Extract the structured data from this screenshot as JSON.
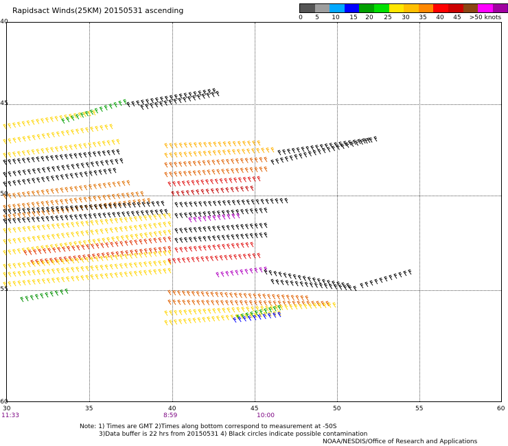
{
  "title": "Rapidsact Winds(25KM) 20150531 ascending",
  "legend": {
    "colors": [
      "#555555",
      "#9e9e9e",
      "#00a8ff",
      "#0000ff",
      "#00a000",
      "#00e000",
      "#ffe600",
      "#ffbf00",
      "#ff8800",
      "#ff0000",
      "#cc0000",
      "#8b4513",
      "#ff00ff",
      "#a000a0",
      "#5a00a0"
    ],
    "labels": [
      "0",
      "5",
      "10",
      "15",
      "20",
      "25",
      "30",
      "35",
      "40",
      "45",
      ">50 knots"
    ]
  },
  "axes": {
    "lat_labels": [
      "-40",
      "-45",
      "-50",
      "-55",
      "-60"
    ],
    "lon_labels": [
      "30",
      "35",
      "40",
      "45",
      "50",
      "55",
      "60"
    ]
  },
  "times": [
    "11:33",
    "8:59",
    "10:00"
  ],
  "notes": {
    "line1": "Note: 1) Times are GMT 2)Times along bottom correspond to measurement at -50S",
    "line2": "3)Data buffer is 22 hrs from 20150531 4) Black circles indicate possible contamination",
    "credit": "NOAA/NESDIS/Office of Research and Applications"
  },
  "swaths": {
    "west_band": [
      {
        "color": "#ffd400",
        "rows": [
          [
            0,
            188,
            130,
            168
          ],
          [
            0,
            210,
            155,
            188
          ],
          [
            0,
            230,
            165,
            210
          ]
        ]
      },
      {
        "color": "#000000",
        "rows": [
          [
            0,
            240,
            165,
            225
          ],
          [
            0,
            258,
            170,
            238
          ],
          [
            0,
            272,
            160,
            252
          ]
        ]
      },
      {
        "color": "#e07000",
        "rows": [
          [
            0,
            290,
            180,
            270
          ],
          [
            0,
            306,
            200,
            286
          ],
          [
            0,
            320,
            210,
            296
          ]
        ]
      },
      {
        "color": "#000000",
        "rows": [
          [
            0,
            312,
            230,
            300
          ],
          [
            0,
            326,
            235,
            312
          ]
        ]
      },
      {
        "color": "#ffd400",
        "rows": [
          [
            0,
            340,
            240,
            318
          ],
          [
            0,
            356,
            240,
            330
          ],
          [
            0,
            372,
            240,
            342
          ]
        ]
      },
      {
        "color": "#e03000",
        "rows": [
          [
            30,
            372,
            240,
            352
          ],
          [
            40,
            386,
            240,
            366
          ]
        ]
      },
      {
        "color": "#ffd400",
        "rows": [
          [
            0,
            392,
            240,
            372
          ],
          [
            0,
            404,
            240,
            386
          ],
          [
            0,
            418,
            240,
            398
          ]
        ]
      },
      {
        "color": "#009000",
        "rows": [
          [
            25,
            440,
            90,
            428
          ]
        ]
      }
    ],
    "central_band": [
      {
        "color": "#ffb000",
        "rows": [
          [
            235,
            216,
            370,
            212
          ],
          [
            235,
            230,
            390,
            222
          ]
        ]
      },
      {
        "color": "#e06000",
        "rows": [
          [
            235,
            244,
            380,
            236
          ],
          [
            235,
            258,
            380,
            250
          ]
        ]
      },
      {
        "color": "#e01010",
        "rows": [
          [
            240,
            272,
            370,
            264
          ]
        ]
      },
      {
        "color": "#c00000",
        "rows": [
          [
            245,
            286,
            360,
            278
          ]
        ]
      },
      {
        "color": "#000000",
        "rows": [
          [
            250,
            302,
            410,
            296
          ],
          [
            250,
            318,
            380,
            310
          ]
        ]
      },
      {
        "color": "#b000c0",
        "rows": [
          [
            270,
            324,
            340,
            318
          ]
        ]
      },
      {
        "color": "#000000",
        "rows": [
          [
            250,
            340,
            380,
            332
          ],
          [
            250,
            354,
            380,
            346
          ]
        ]
      },
      {
        "color": "#e01010",
        "rows": [
          [
            250,
            368,
            360,
            360
          ],
          [
            240,
            384,
            370,
            376
          ]
        ]
      },
      {
        "color": "#b000c0",
        "rows": [
          [
            310,
            404,
            380,
            396
          ]
        ]
      },
      {
        "color": "#000000",
        "rows": [
          [
            380,
            400,
            500,
            420
          ],
          [
            390,
            414,
            510,
            424
          ]
        ]
      },
      {
        "color": "#e06000",
        "rows": [
          [
            240,
            430,
            440,
            438
          ],
          [
            240,
            444,
            470,
            446
          ]
        ]
      },
      {
        "color": "#ffd400",
        "rows": [
          [
            235,
            460,
            480,
            448
          ],
          [
            235,
            474,
            400,
            460
          ]
        ]
      },
      {
        "color": "#00a000",
        "rows": [
          [
            340,
            466,
            400,
            452
          ]
        ]
      },
      {
        "color": "#0000ff",
        "rows": [
          [
            335,
            470,
            400,
            462
          ]
        ]
      }
    ],
    "north_band": [
      {
        "color": "#000000",
        "rows": [
          [
            180,
            156,
            305,
            136
          ],
          [
            200,
            160,
            310,
            140
          ]
        ]
      },
      {
        "color": "#00a000",
        "rows": [
          [
            85,
            180,
            175,
            152
          ]
        ]
      },
      {
        "color": "#000000",
        "rows": [
          [
            390,
            240,
            540,
            206
          ],
          [
            400,
            226,
            530,
            208
          ]
        ]
      },
      {
        "color": "#000000",
        "rows": [
          [
            520,
            420,
            590,
            400
          ]
        ]
      }
    ]
  }
}
